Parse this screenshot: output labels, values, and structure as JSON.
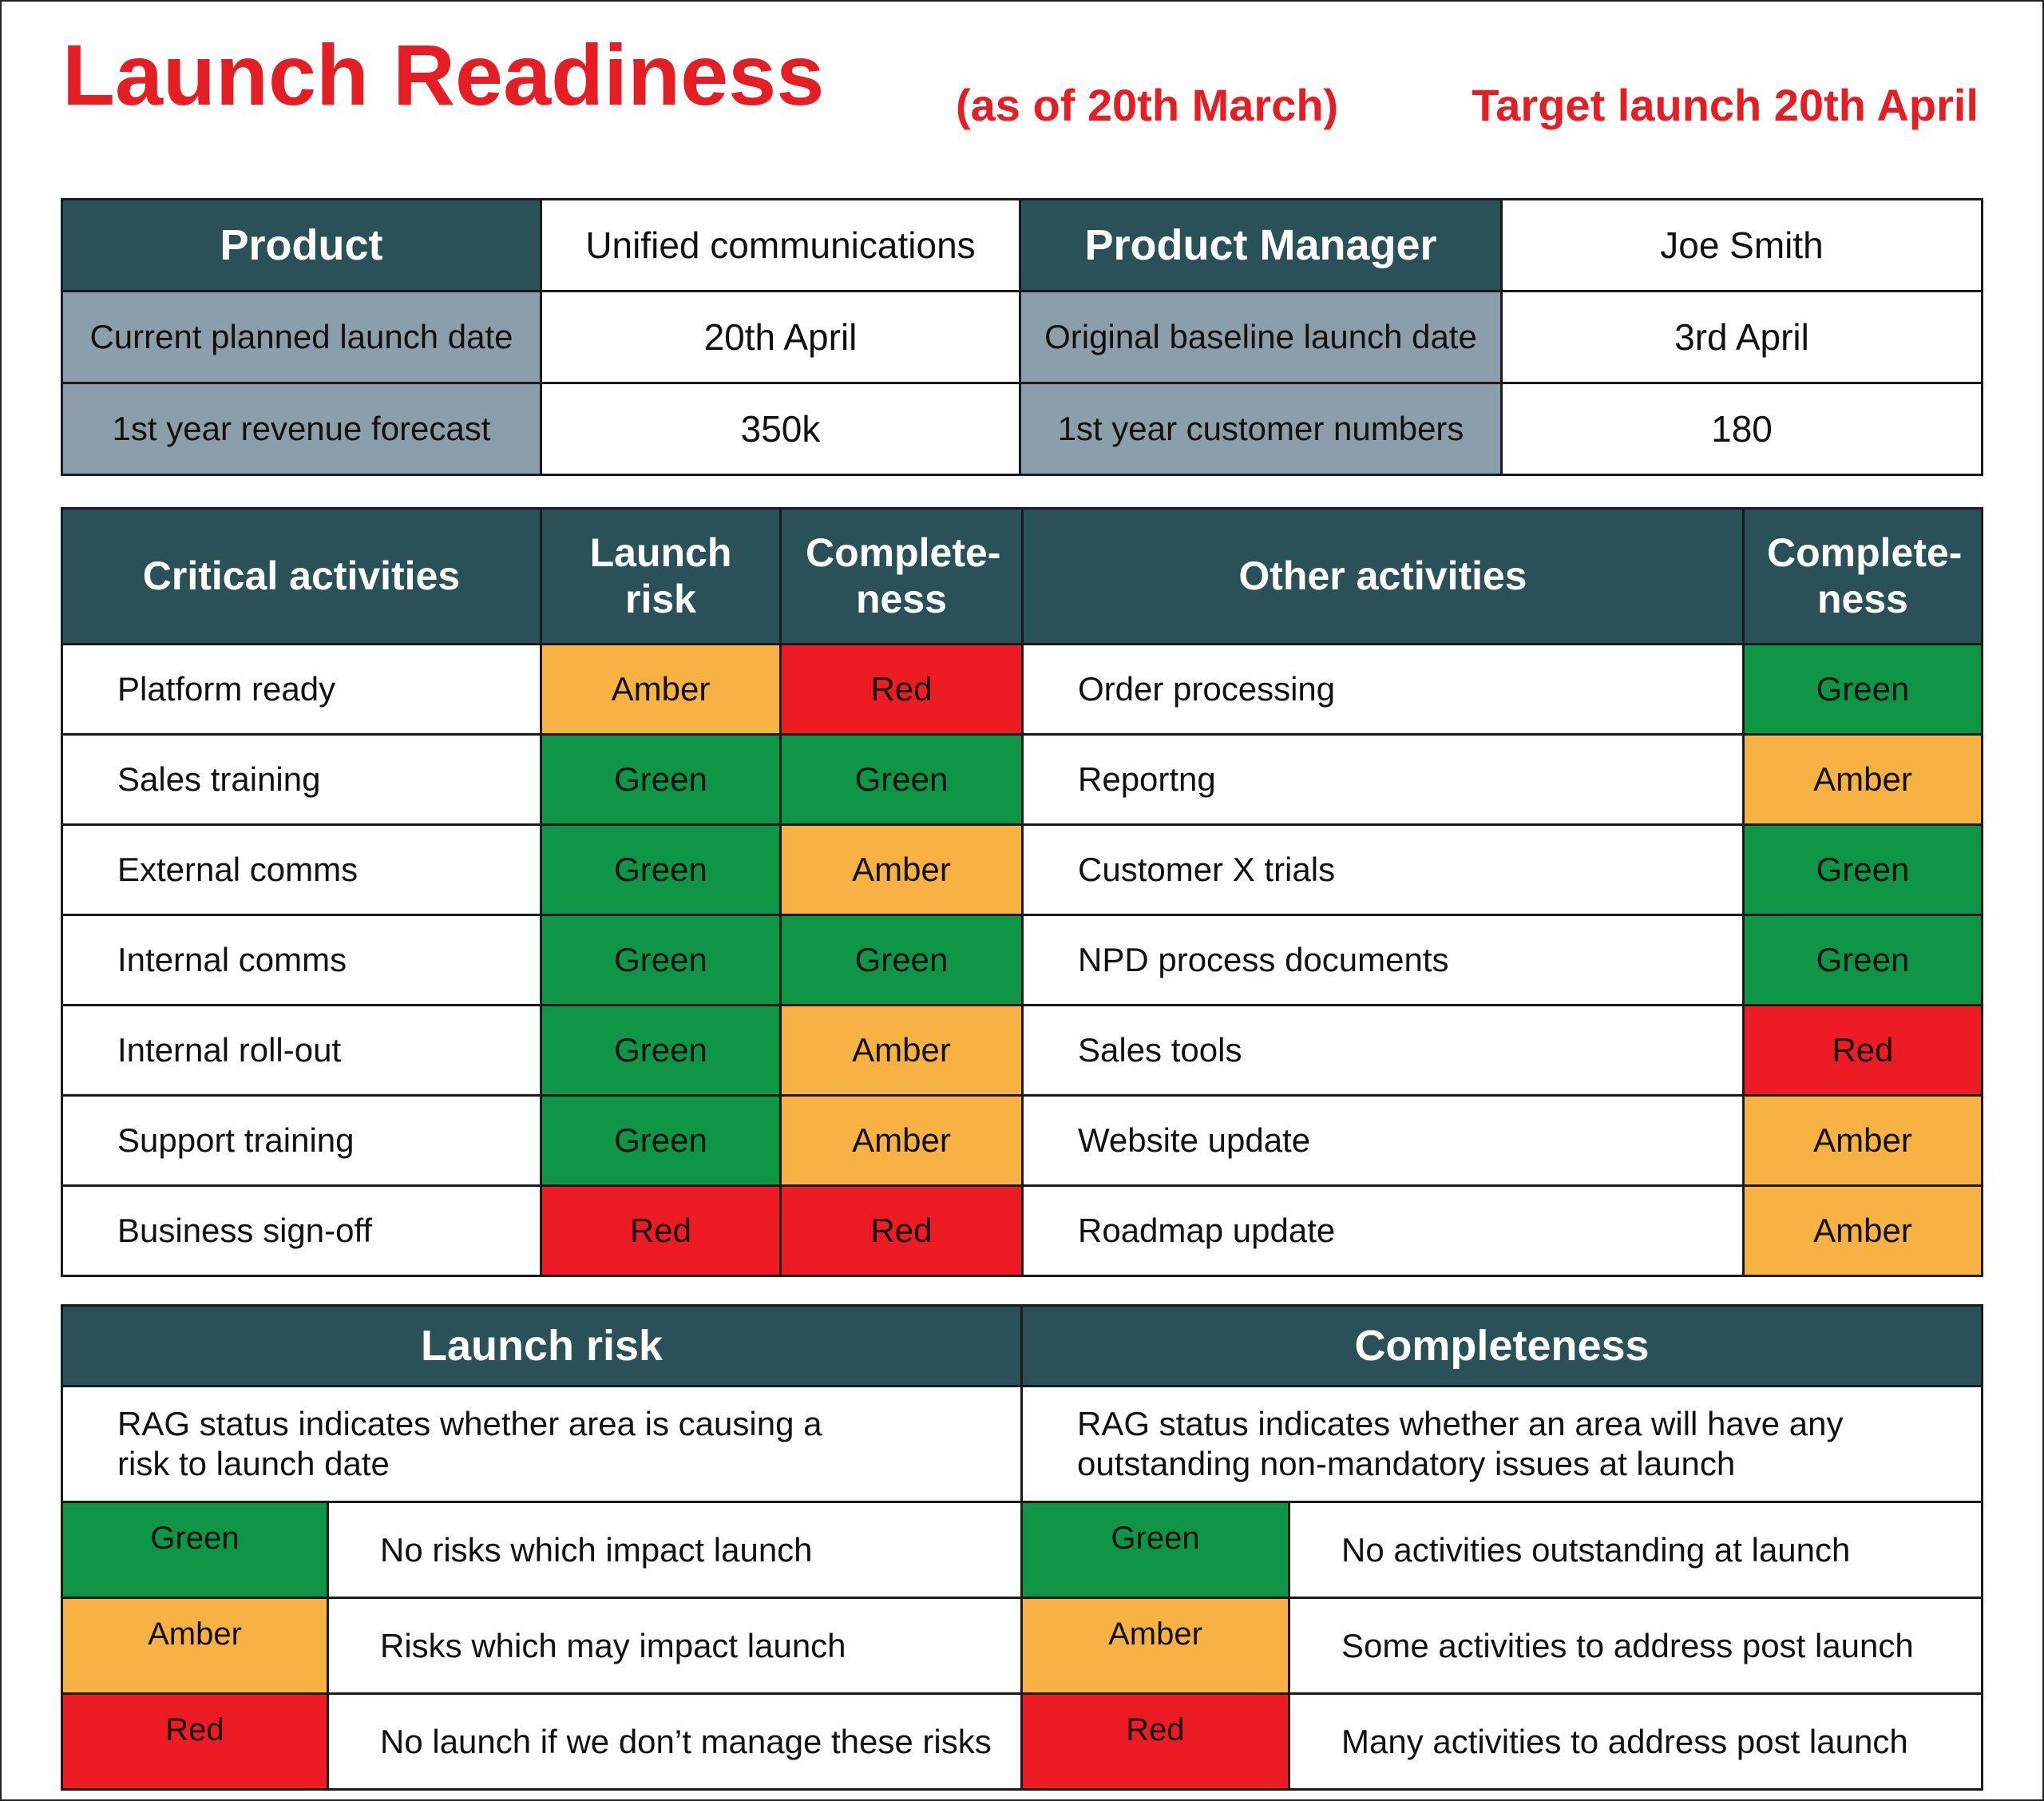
{
  "header": {
    "title": "Launch Readiness",
    "as_of": "(as of 20th March)",
    "target": "Target launch 20th April"
  },
  "info": {
    "product_label": "Product",
    "product_value": "Unified communications",
    "manager_label": "Product Manager",
    "manager_value": "Joe Smith",
    "planned_label": "Current planned launch date",
    "planned_value": "20th April",
    "baseline_label": "Original baseline launch date",
    "baseline_value": "3rd April",
    "revenue_label": "1st year revenue forecast",
    "revenue_value": "350k",
    "customers_label": "1st year customer numbers",
    "customers_value": "180"
  },
  "activities": {
    "critical_header": "Critical activities",
    "launch_risk_header": "Launch risk",
    "completeness_header": "Complete-ness",
    "other_header": "Other activities",
    "other_completeness_header": "Complete-ness",
    "critical": [
      {
        "name": "Platform ready",
        "risk": "Amber",
        "completeness": "Red"
      },
      {
        "name": "Sales training",
        "risk": "Green",
        "completeness": "Green"
      },
      {
        "name": "External comms",
        "risk": "Green",
        "completeness": "Amber"
      },
      {
        "name": "Internal comms",
        "risk": "Green",
        "completeness": "Green"
      },
      {
        "name": "Internal roll-out",
        "risk": "Green",
        "completeness": "Amber"
      },
      {
        "name": "Support training",
        "risk": "Green",
        "completeness": "Amber"
      },
      {
        "name": "Business sign-off",
        "risk": "Red",
        "completeness": "Red"
      }
    ],
    "other": [
      {
        "name": "Order processing",
        "completeness": "Green"
      },
      {
        "name": "Reportng",
        "completeness": "Amber"
      },
      {
        "name": "Customer X trials",
        "completeness": "Green"
      },
      {
        "name": "NPD process documents",
        "completeness": "Green"
      },
      {
        "name": "Sales tools",
        "completeness": "Red"
      },
      {
        "name": "Website update",
        "completeness": "Amber"
      },
      {
        "name": "Roadmap update",
        "completeness": "Amber"
      }
    ]
  },
  "legend": {
    "risk_title": "Launch risk",
    "risk_desc": "RAG status indicates whether area is causing a risk to launch date",
    "completeness_title": "Completeness",
    "completeness_desc": "RAG status indicates whether an area will have any outstanding non-mandatory issues at launch",
    "risk_keys": [
      {
        "status": "Green",
        "text": "No risks which impact launch"
      },
      {
        "status": "Amber",
        "text": "Risks which may impact launch"
      },
      {
        "status": "Red",
        "text": "No launch if we don’t manage these risks"
      }
    ],
    "completeness_keys": [
      {
        "status": "Green",
        "text": "No activities outstanding at launch"
      },
      {
        "status": "Amber",
        "text": "Some activities to address post launch"
      },
      {
        "status": "Red",
        "text": "Many activities to address post launch"
      }
    ]
  },
  "colors": {
    "title_red": "#e31e24",
    "header_teal": "#2a5157",
    "label_grey": "#8c9ea9",
    "green": "#0e9546",
    "amber": "#f8b143",
    "red": "#ed1c24"
  }
}
